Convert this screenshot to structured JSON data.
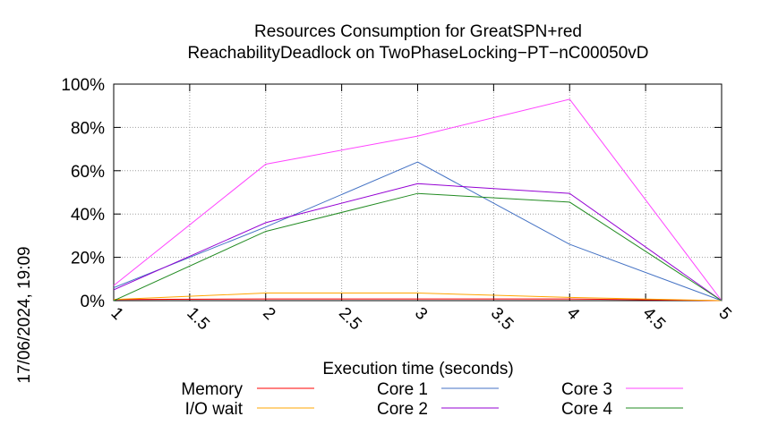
{
  "chart_data": {
    "type": "line",
    "title": "Resources Consumption for GreatSPN+red",
    "subtitle": "ReachabilityDeadlock on TwoPhaseLocking−PT−nC00050vD",
    "xlabel": "Execution time (seconds)",
    "timestamp": "17/06/2024, 19:09",
    "xlim": [
      1,
      5
    ],
    "ylim": [
      0,
      100
    ],
    "x_ticks": [
      "1",
      "1.5",
      "2",
      "2.5",
      "3",
      "3.5",
      "4",
      "4.5",
      "5"
    ],
    "y_ticks": [
      "0%",
      "20%",
      "40%",
      "60%",
      "80%",
      "100%"
    ],
    "grid": true,
    "legend_position": "bottom",
    "x": [
      1,
      2,
      3,
      4,
      5
    ],
    "series": [
      {
        "name": "Memory",
        "color": "#ff0000",
        "values": [
          0.5,
          0.8,
          0.8,
          0.8,
          0
        ]
      },
      {
        "name": "I/O wait",
        "color": "#ffa500",
        "values": [
          0.5,
          3.5,
          3.5,
          1.5,
          0
        ]
      },
      {
        "name": "Core 1",
        "color": "#4472c4",
        "values": [
          6,
          34,
          64,
          26,
          0
        ]
      },
      {
        "name": "Core 2",
        "color": "#9400d3",
        "values": [
          5,
          36,
          54,
          49.5,
          0
        ]
      },
      {
        "name": "Core 3",
        "color": "#ff44ff",
        "values": [
          7,
          63,
          76,
          93,
          0
        ]
      },
      {
        "name": "Core 4",
        "color": "#228b22",
        "values": [
          0,
          32,
          49.5,
          45.5,
          0
        ]
      }
    ]
  }
}
